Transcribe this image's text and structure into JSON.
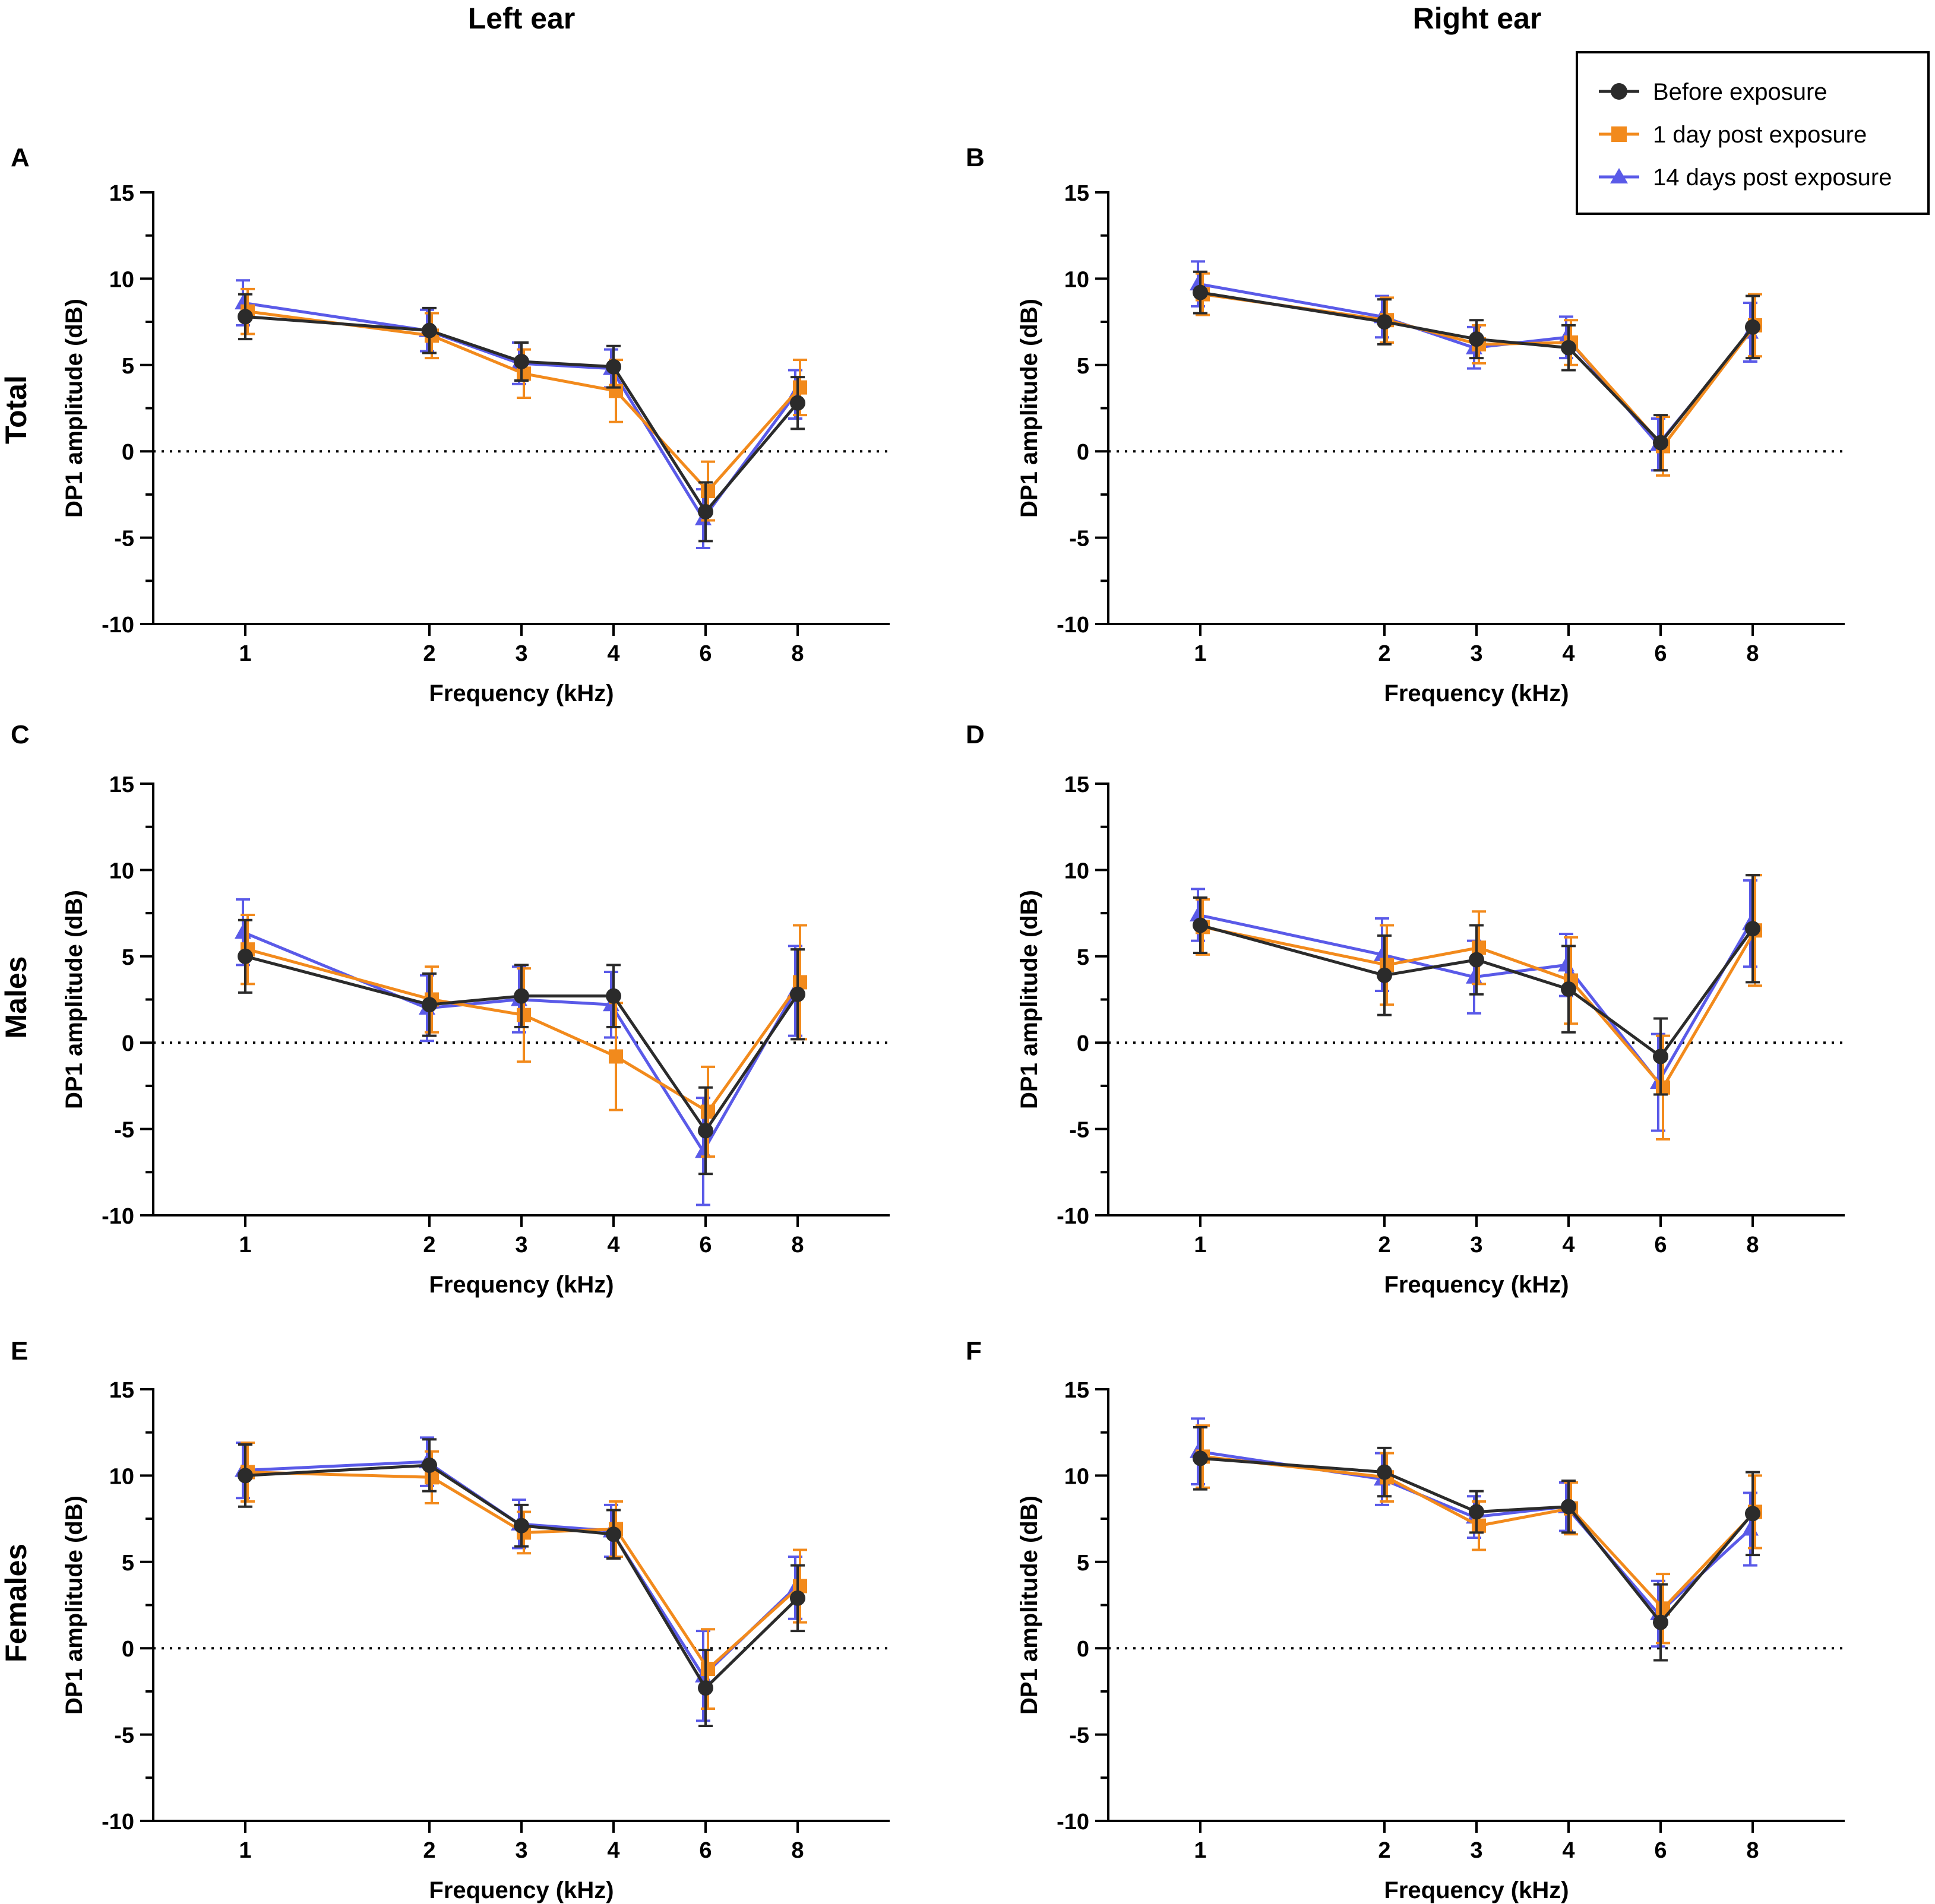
{
  "figure": {
    "column_titles": [
      "Left ear",
      "Right ear"
    ],
    "row_titles": [
      "Total",
      "Males",
      "Females"
    ],
    "legend": {
      "entries": [
        "Before exposure",
        "1 day post exposure",
        "14 days post exposure"
      ],
      "placement": "top-right"
    },
    "colors": {
      "before": "#2b2b2b",
      "day1": "#f28a1c",
      "day14": "#5a5ae8",
      "axis": "#000000"
    },
    "markers": {
      "before": "circle",
      "day1": "square",
      "day14": "triangle"
    }
  },
  "chart_data": [
    {
      "panel": "A",
      "ear": "Left ear",
      "group": "Total",
      "type": "line",
      "x": [
        1,
        2,
        3,
        4,
        6,
        8
      ],
      "x_tick_labels": [
        "1",
        "2",
        "3",
        "4",
        "6",
        "8"
      ],
      "xlabel": "Frequency (kHz)",
      "ylabel": "DP1 amplitude (dB)",
      "ylim": [
        -10,
        15
      ],
      "y_ticks": [
        -10,
        -5,
        0,
        5,
        10,
        15
      ],
      "reference_line": 0,
      "series": [
        {
          "name": "Before exposure",
          "values": [
            7.8,
            7.0,
            5.2,
            4.9,
            -3.5,
            2.8
          ],
          "errors": [
            1.3,
            1.3,
            1.1,
            1.2,
            1.7,
            1.5
          ]
        },
        {
          "name": "1 day post exposure",
          "values": [
            8.1,
            6.7,
            4.5,
            3.5,
            -2.3,
            3.7
          ],
          "errors": [
            1.3,
            1.3,
            1.4,
            1.8,
            1.7,
            1.6
          ]
        },
        {
          "name": "14 days post exposure",
          "values": [
            8.6,
            7.0,
            5.1,
            4.8,
            -3.9,
            3.3
          ],
          "errors": [
            1.3,
            1.2,
            1.2,
            1.1,
            1.7,
            1.4
          ]
        }
      ]
    },
    {
      "panel": "B",
      "ear": "Right ear",
      "group": "Total",
      "type": "line",
      "x": [
        1,
        2,
        3,
        4,
        6,
        8
      ],
      "x_tick_labels": [
        "1",
        "2",
        "3",
        "4",
        "6",
        "8"
      ],
      "xlabel": "Frequency (kHz)",
      "ylabel": "DP1 amplitude (dB)",
      "ylim": [
        -10,
        15
      ],
      "y_ticks": [
        -10,
        -5,
        0,
        5,
        10,
        15
      ],
      "reference_line": 0,
      "series": [
        {
          "name": "Before exposure",
          "values": [
            9.2,
            7.5,
            6.5,
            6.0,
            0.5,
            7.2
          ],
          "errors": [
            1.2,
            1.3,
            1.1,
            1.3,
            1.6,
            1.8
          ]
        },
        {
          "name": "1 day post exposure",
          "values": [
            9.1,
            7.6,
            6.2,
            6.3,
            0.3,
            7.3
          ],
          "errors": [
            1.2,
            1.3,
            1.1,
            1.3,
            1.7,
            1.8
          ]
        },
        {
          "name": "14 days post exposure",
          "values": [
            9.7,
            7.8,
            6.0,
            6.6,
            0.4,
            6.9
          ],
          "errors": [
            1.3,
            1.2,
            1.2,
            1.2,
            1.5,
            1.7
          ]
        }
      ]
    },
    {
      "panel": "C",
      "ear": "Left ear",
      "group": "Males",
      "type": "line",
      "x": [
        1,
        2,
        3,
        4,
        6,
        8
      ],
      "x_tick_labels": [
        "1",
        "2",
        "3",
        "4",
        "6",
        "8"
      ],
      "xlabel": "Frequency (kHz)",
      "ylabel": "DP1 amplitude (dB)",
      "ylim": [
        -10,
        15
      ],
      "y_ticks": [
        -10,
        -5,
        0,
        5,
        10,
        15
      ],
      "reference_line": 0,
      "series": [
        {
          "name": "Before exposure",
          "values": [
            5.0,
            2.2,
            2.7,
            2.7,
            -5.1,
            2.8
          ],
          "errors": [
            2.1,
            1.8,
            1.8,
            1.8,
            2.5,
            2.6
          ]
        },
        {
          "name": "1 day post exposure",
          "values": [
            5.4,
            2.5,
            1.6,
            -0.8,
            -4.0,
            3.5
          ],
          "errors": [
            2.0,
            1.9,
            2.7,
            3.1,
            2.6,
            3.3
          ]
        },
        {
          "name": "14 days post exposure",
          "values": [
            6.4,
            2.0,
            2.5,
            2.2,
            -6.3,
            3.0
          ],
          "errors": [
            1.9,
            1.9,
            1.9,
            1.9,
            3.1,
            2.6
          ]
        }
      ]
    },
    {
      "panel": "D",
      "ear": "Right ear",
      "group": "Males",
      "type": "line",
      "x": [
        1,
        2,
        3,
        4,
        6,
        8
      ],
      "x_tick_labels": [
        "1",
        "2",
        "3",
        "4",
        "6",
        "8"
      ],
      "xlabel": "Frequency (kHz)",
      "ylabel": "DP1 amplitude (dB)",
      "ylim": [
        -10,
        15
      ],
      "y_ticks": [
        -10,
        -5,
        0,
        5,
        10,
        15
      ],
      "reference_line": 0,
      "series": [
        {
          "name": "Before exposure",
          "values": [
            6.8,
            3.9,
            4.8,
            3.1,
            -0.8,
            6.6
          ],
          "errors": [
            1.6,
            2.3,
            2.0,
            2.5,
            2.2,
            3.1
          ]
        },
        {
          "name": "1 day post exposure",
          "values": [
            6.7,
            4.5,
            5.5,
            3.6,
            -2.6,
            6.5
          ],
          "errors": [
            1.6,
            2.3,
            2.1,
            2.5,
            3.0,
            3.2
          ]
        },
        {
          "name": "14 days post exposure",
          "values": [
            7.4,
            5.1,
            3.8,
            4.5,
            -2.3,
            6.9
          ],
          "errors": [
            1.5,
            2.1,
            2.1,
            1.8,
            2.8,
            2.5
          ]
        }
      ]
    },
    {
      "panel": "E",
      "ear": "Left ear",
      "group": "Females",
      "type": "line",
      "x": [
        1,
        2,
        3,
        4,
        6,
        8
      ],
      "x_tick_labels": [
        "1",
        "2",
        "3",
        "4",
        "6",
        "8"
      ],
      "xlabel": "Frequency (kHz)",
      "ylabel": "DP1 amplitude (dB)",
      "ylim": [
        -10,
        15
      ],
      "y_ticks": [
        -10,
        -5,
        0,
        5,
        10,
        15
      ],
      "reference_line": 0,
      "series": [
        {
          "name": "Before exposure",
          "values": [
            10.0,
            10.6,
            7.1,
            6.6,
            -2.3,
            2.9
          ],
          "errors": [
            1.8,
            1.5,
            1.2,
            1.4,
            2.2,
            1.9
          ]
        },
        {
          "name": "1 day post exposure",
          "values": [
            10.2,
            9.9,
            6.7,
            6.9,
            -1.2,
            3.6
          ],
          "errors": [
            1.7,
            1.5,
            1.2,
            1.6,
            2.3,
            2.1
          ]
        },
        {
          "name": "14 days post exposure",
          "values": [
            10.3,
            10.8,
            7.2,
            6.8,
            -1.6,
            3.5
          ],
          "errors": [
            1.6,
            1.4,
            1.4,
            1.5,
            2.6,
            1.8
          ]
        }
      ]
    },
    {
      "panel": "F",
      "ear": "Right ear",
      "group": "Females",
      "type": "line",
      "x": [
        1,
        2,
        3,
        4,
        6,
        8
      ],
      "x_tick_labels": [
        "1",
        "2",
        "3",
        "4",
        "6",
        "8"
      ],
      "xlabel": "Frequency (kHz)",
      "ylabel": "DP1 amplitude (dB)",
      "ylim": [
        -10,
        15
      ],
      "y_ticks": [
        -10,
        -5,
        0,
        5,
        10,
        15
      ],
      "reference_line": 0,
      "series": [
        {
          "name": "Before exposure",
          "values": [
            11.0,
            10.2,
            7.9,
            8.2,
            1.5,
            7.8
          ],
          "errors": [
            1.8,
            1.4,
            1.2,
            1.5,
            2.2,
            2.4
          ]
        },
        {
          "name": "1 day post exposure",
          "values": [
            11.1,
            9.9,
            7.1,
            8.1,
            2.3,
            7.9
          ],
          "errors": [
            1.8,
            1.4,
            1.4,
            1.5,
            2.0,
            2.1
          ]
        },
        {
          "name": "14 days post exposure",
          "values": [
            11.4,
            9.8,
            7.6,
            8.2,
            2.0,
            6.9
          ],
          "errors": [
            1.9,
            1.5,
            1.2,
            1.4,
            1.9,
            2.1
          ]
        }
      ]
    }
  ]
}
